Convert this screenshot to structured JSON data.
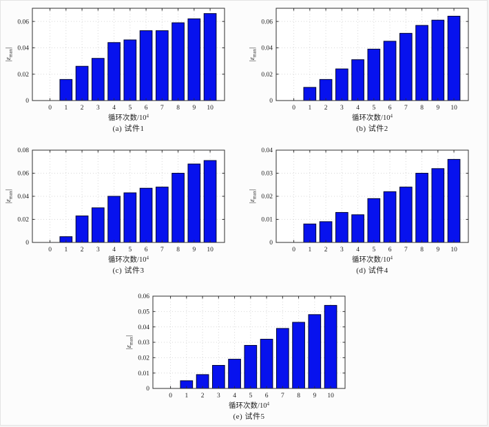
{
  "figure": {
    "background": "#fcfcfc",
    "description": "最大应变随循环次数变化柱状图（试件1~试件5）"
  },
  "colors": {
    "bar_fill": "#0712ee",
    "bar_edge": "#01062e",
    "grid": "#d7d7d7",
    "axis": "#2e2e2e",
    "text": "#1c1c1c"
  },
  "chart_data": [
    {
      "type": "bar",
      "id": "a",
      "caption": "(a) 试件1",
      "xlabel": {
        "main": "循环次数/10",
        "sup": "4"
      },
      "ylabel": {
        "open": "|",
        "symbol": "ε",
        "sub": "max",
        "close": "|"
      },
      "categories": [
        1,
        2,
        3,
        4,
        5,
        6,
        7,
        8,
        9,
        10
      ],
      "values": [
        0.016,
        0.026,
        0.032,
        0.044,
        0.046,
        0.053,
        0.053,
        0.059,
        0.062,
        0.066
      ],
      "xlim": [
        -1.1,
        10.9
      ],
      "ylim": [
        0,
        0.07
      ],
      "xtick_values": [
        0,
        1,
        2,
        3,
        4,
        5,
        6,
        7,
        8,
        9,
        10
      ],
      "xtick_labels": [
        "0",
        "1",
        "2",
        "3",
        "4",
        "5",
        "6",
        "7",
        "8",
        "9",
        "10"
      ],
      "ytick_values": [
        0,
        0.02,
        0.04,
        0.06
      ],
      "ytick_labels": [
        "0",
        "0.02",
        "0.04",
        "0.06"
      ],
      "bar_width": 0.76,
      "grid": true,
      "legend": "none"
    },
    {
      "type": "bar",
      "id": "b",
      "caption": "(b) 试件2",
      "xlabel": {
        "main": "循环次数/10",
        "sup": "4"
      },
      "ylabel": {
        "open": "|",
        "symbol": "ε",
        "sub": "max",
        "close": "|"
      },
      "categories": [
        1,
        2,
        3,
        4,
        5,
        6,
        7,
        8,
        9,
        10
      ],
      "values": [
        0.01,
        0.016,
        0.024,
        0.031,
        0.039,
        0.045,
        0.051,
        0.057,
        0.061,
        0.064
      ],
      "xlim": [
        -1.1,
        10.9
      ],
      "ylim": [
        0,
        0.07
      ],
      "xtick_values": [
        0,
        1,
        2,
        3,
        4,
        5,
        6,
        7,
        8,
        9,
        10
      ],
      "xtick_labels": [
        "0",
        "1",
        "2",
        "3",
        "4",
        "5",
        "6",
        "7",
        "8",
        "9",
        "10"
      ],
      "ytick_values": [
        0,
        0.02,
        0.04,
        0.06
      ],
      "ytick_labels": [
        "0",
        "0.02",
        "0.04",
        "0.06"
      ],
      "bar_width": 0.76,
      "grid": true,
      "legend": "none"
    },
    {
      "type": "bar",
      "id": "c",
      "caption": "(c) 试件3",
      "xlabel": {
        "main": "循环次数/10",
        "sup": "4"
      },
      "ylabel": {
        "open": "|",
        "symbol": "ε",
        "sub": "max",
        "close": "|"
      },
      "categories": [
        1,
        2,
        3,
        4,
        5,
        6,
        7,
        8,
        9,
        10
      ],
      "values": [
        0.005,
        0.023,
        0.03,
        0.04,
        0.043,
        0.047,
        0.048,
        0.06,
        0.068,
        0.071
      ],
      "xlim": [
        -1.1,
        10.9
      ],
      "ylim": [
        0,
        0.08
      ],
      "xtick_values": [
        0,
        1,
        2,
        3,
        4,
        5,
        6,
        7,
        8,
        9,
        10
      ],
      "xtick_labels": [
        "0",
        "1",
        "2",
        "3",
        "4",
        "5",
        "6",
        "7",
        "8",
        "9",
        "10"
      ],
      "ytick_values": [
        0,
        0.02,
        0.04,
        0.06,
        0.08
      ],
      "ytick_labels": [
        "0",
        "0.02",
        "0.04",
        "0.06",
        "0.08"
      ],
      "bar_width": 0.76,
      "grid": true,
      "legend": "none"
    },
    {
      "type": "bar",
      "id": "d",
      "caption": "(d) 试件4",
      "xlabel": {
        "main": "循环次数/10",
        "sup": "4"
      },
      "ylabel": {
        "open": "|",
        "symbol": "ε",
        "sub": "max",
        "close": "|"
      },
      "categories": [
        1,
        2,
        3,
        4,
        5,
        6,
        7,
        8,
        9,
        10
      ],
      "values": [
        0.008,
        0.009,
        0.013,
        0.012,
        0.019,
        0.022,
        0.024,
        0.03,
        0.032,
        0.036
      ],
      "xlim": [
        -1.1,
        10.9
      ],
      "ylim": [
        0,
        0.04
      ],
      "xtick_values": [
        0,
        1,
        2,
        3,
        4,
        5,
        6,
        7,
        8,
        9,
        10
      ],
      "xtick_labels": [
        "0",
        "1",
        "2",
        "3",
        "4",
        "5",
        "6",
        "7",
        "8",
        "9",
        "10"
      ],
      "ytick_values": [
        0,
        0.01,
        0.02,
        0.03,
        0.04
      ],
      "ytick_labels": [
        "0",
        "0.01",
        "0.02",
        "0.03",
        "0.04"
      ],
      "bar_width": 0.76,
      "grid": true,
      "legend": "none"
    },
    {
      "type": "bar",
      "id": "e",
      "caption": "(e) 试件5",
      "xlabel": {
        "main": "循环次数/10",
        "sup": "4"
      },
      "ylabel": {
        "open": "|",
        "symbol": "ε",
        "sub": "max",
        "close": "|"
      },
      "categories": [
        1,
        2,
        3,
        4,
        5,
        6,
        7,
        8,
        9,
        10
      ],
      "values": [
        0.005,
        0.009,
        0.015,
        0.019,
        0.028,
        0.032,
        0.039,
        0.043,
        0.048,
        0.054
      ],
      "xlim": [
        -1.1,
        10.9
      ],
      "ylim": [
        0,
        0.06
      ],
      "xtick_values": [
        0,
        1,
        2,
        3,
        4,
        5,
        6,
        7,
        8,
        9,
        10
      ],
      "xtick_labels": [
        "0",
        "1",
        "2",
        "3",
        "4",
        "5",
        "6",
        "7",
        "8",
        "9",
        "10"
      ],
      "ytick_values": [
        0,
        0.01,
        0.02,
        0.03,
        0.04,
        0.05,
        0.06
      ],
      "ytick_labels": [
        "0",
        "0.01",
        "0.02",
        "0.03",
        "0.04",
        "0.05",
        "0.06"
      ],
      "bar_width": 0.76,
      "grid": true,
      "legend": "none"
    }
  ]
}
